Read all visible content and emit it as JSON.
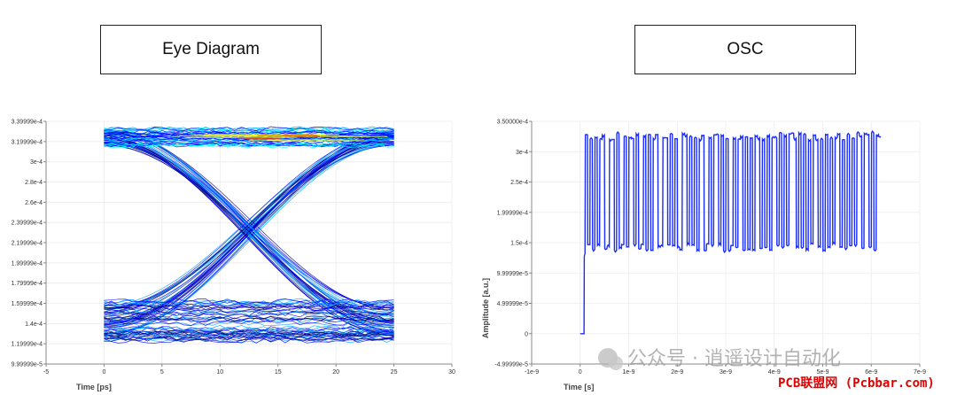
{
  "chart_data": [
    {
      "type": "line",
      "title": "Eye Diagram",
      "xlabel": "Time [ps]",
      "ylabel": "",
      "xlim": [
        -5,
        30
      ],
      "ylim": [
        9.99999e-05,
        0.000339999
      ],
      "x_ticks": [
        -5,
        0,
        5,
        10,
        15,
        20,
        25,
        30
      ],
      "y_ticks": [
        {
          "value": 9.99999e-05,
          "label": "9.99999e-5"
        },
        {
          "value": 0.000119999,
          "label": "1.19999e-4"
        },
        {
          "value": 0.00014,
          "label": "1.4e-4"
        },
        {
          "value": 0.000159999,
          "label": "1.59999e-4"
        },
        {
          "value": 0.000179999,
          "label": "1.79999e-4"
        },
        {
          "value": 0.000199999,
          "label": "1.99999e-4"
        },
        {
          "value": 0.000219999,
          "label": "2.19999e-4"
        },
        {
          "value": 0.000239999,
          "label": "2.39999e-4"
        },
        {
          "value": 0.00026,
          "label": "2.6e-4"
        },
        {
          "value": 0.00028,
          "label": "2.8e-4"
        },
        {
          "value": 0.0003,
          "label": "3e-4"
        },
        {
          "value": 0.000319999,
          "label": "3.19999e-4"
        },
        {
          "value": 0.000339999,
          "label": "3.39999e-4"
        }
      ],
      "eye": {
        "ui_span": [
          0,
          25
        ],
        "high_level": 0.000324,
        "low_level": 0.000143,
        "crossing_level": 0.000257,
        "crossing_times": [
          0,
          25
        ],
        "bottom_rail_top": 0.000166,
        "traces": 60
      },
      "grid": true,
      "colormap": [
        "#000080",
        "#0000ff",
        "#00a0ff",
        "#00ffff",
        "#ffff00",
        "#ff4000"
      ]
    },
    {
      "type": "line",
      "title": "OSC",
      "xlabel": "Time [s]",
      "ylabel": "Amplitude [a.u.]",
      "xlim": [
        -1e-09,
        7e-09
      ],
      "ylim": [
        -4.99999e-05,
        0.00035
      ],
      "x_ticks": [
        {
          "value": -1e-09,
          "label": "-1e-9"
        },
        {
          "value": 0,
          "label": "0"
        },
        {
          "value": 1e-09,
          "label": "1e-9"
        },
        {
          "value": 2e-09,
          "label": "2e-9"
        },
        {
          "value": 3e-09,
          "label": "3e-9"
        },
        {
          "value": 4e-09,
          "label": "4e-9"
        },
        {
          "value": 5e-09,
          "label": "5e-9"
        },
        {
          "value": 6e-09,
          "label": "6e-9"
        },
        {
          "value": 7e-09,
          "label": "7e-9"
        }
      ],
      "y_ticks": [
        {
          "value": -4.99999e-05,
          "label": "-4.99999e-5"
        },
        {
          "value": 0,
          "label": "0"
        },
        {
          "value": 4.99999e-05,
          "label": "4.99999e-5"
        },
        {
          "value": 9.99999e-05,
          "label": "9.99999e-5"
        },
        {
          "value": 0.00015,
          "label": "1.5e-4"
        },
        {
          "value": 0.000199999,
          "label": "1.99999e-4"
        },
        {
          "value": 0.00025,
          "label": "2.5e-4"
        },
        {
          "value": 0.0003,
          "label": "3e-4"
        },
        {
          "value": 0.00035,
          "label": "3.50000e-4"
        }
      ],
      "series": [
        {
          "color": "#1a2cff",
          "start_time": 1e-10,
          "bit_period": 5e-11,
          "high": 0.000325,
          "low": 0.000142,
          "initial_step": 0.000128,
          "bits": [
            1,
            0,
            1,
            0,
            1,
            0,
            1,
            1,
            0,
            0,
            1,
            1,
            0,
            1,
            0,
            0,
            1,
            0,
            1,
            1,
            0,
            1,
            0,
            0,
            1,
            0,
            1,
            0,
            1,
            1,
            0,
            0,
            1,
            1,
            0,
            1,
            0,
            1,
            0,
            0,
            1,
            1,
            0,
            1,
            0,
            1,
            0,
            1,
            1,
            0,
            0,
            1,
            0,
            1,
            1,
            0,
            1,
            0,
            1,
            0,
            0,
            1,
            0,
            1,
            1,
            0,
            1,
            0,
            1,
            0,
            1,
            1,
            0,
            1,
            0,
            1,
            0,
            1,
            1,
            0,
            1,
            0,
            1,
            0,
            1,
            1,
            1,
            0,
            1,
            0,
            1,
            0,
            1,
            0,
            1,
            1,
            0,
            1,
            0,
            1,
            0,
            1,
            0,
            1,
            1,
            0,
            1,
            0,
            1,
            0,
            1,
            0,
            1,
            1,
            0,
            1,
            1,
            0,
            1,
            0,
            1,
            1
          ]
        }
      ],
      "grid": true
    }
  ],
  "watermark": {
    "main_text": "公众号 · 逍遥设计自动化",
    "site_text": "PCB联盟网 (Pcbbar.com)"
  }
}
